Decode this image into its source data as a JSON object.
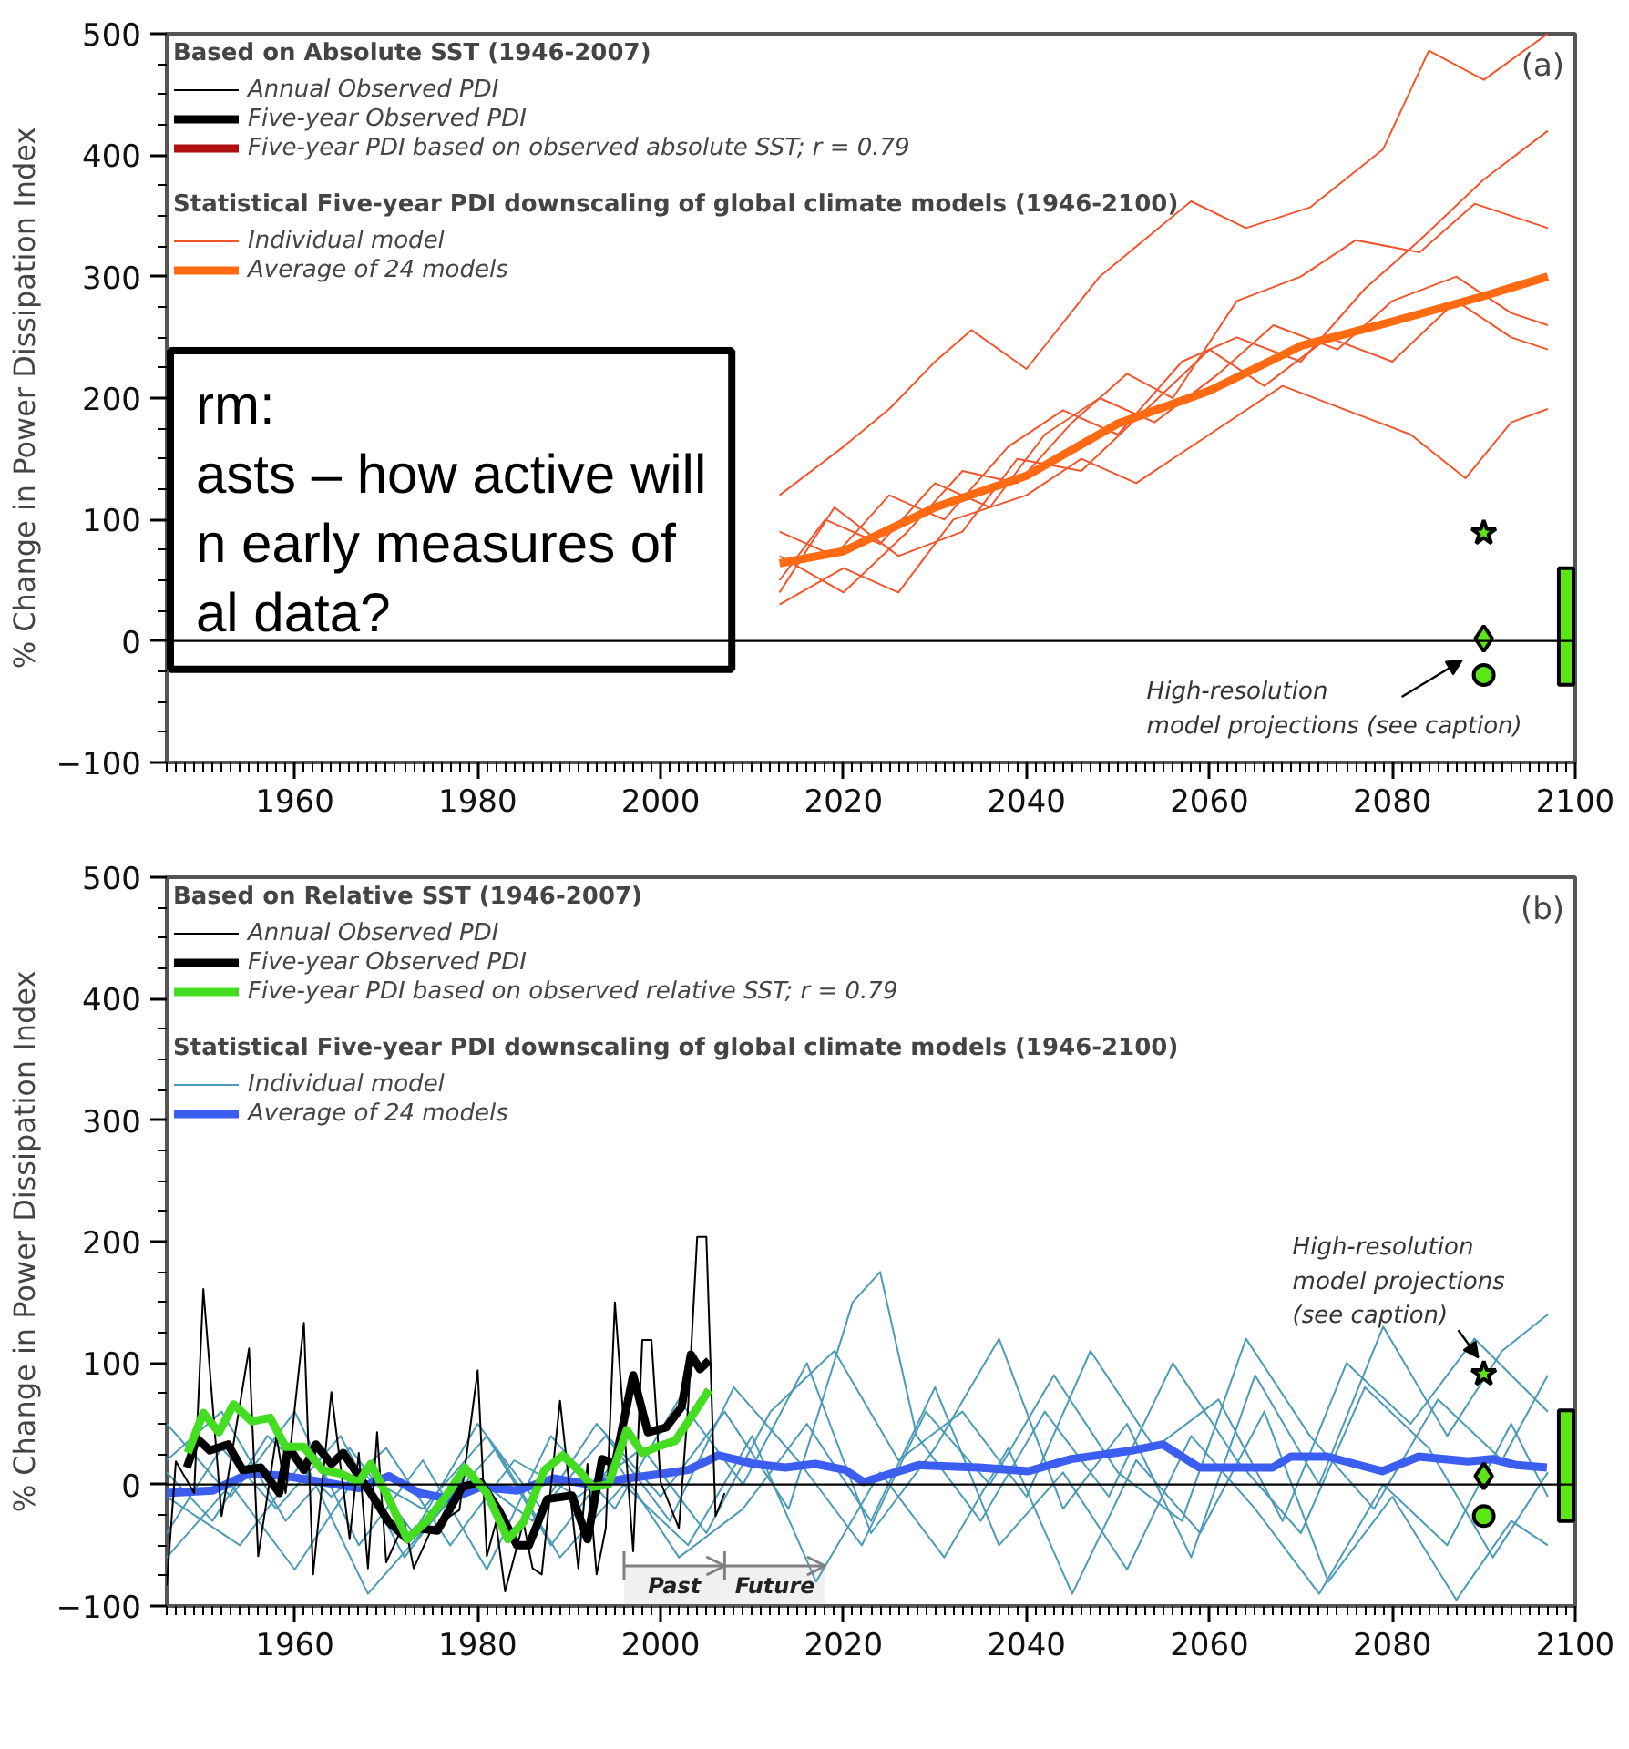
{
  "chart_data": [
    {
      "type": "line",
      "title": "(a)",
      "ylabel": "% Change in Power Dissipation Index",
      "legend_title": "Based on Absolute SST (1946-2007)",
      "subtitle": "Statistical Five-year PDI downscaling of global climate models (1946-2100)",
      "xlim": [
        1946,
        2100
      ],
      "xticks": [
        1960,
        1980,
        2000,
        2020,
        2040,
        2060,
        2080,
        2100
      ],
      "ylim": [
        -100,
        500
      ],
      "yticks": [
        -100,
        0,
        100,
        200,
        300,
        400,
        500
      ],
      "grid": false,
      "legend": "top left",
      "ref_lines": [
        {
          "axis": "y",
          "value": 0,
          "color": "#000000"
        }
      ],
      "annotations": [
        {
          "text": "High-resolution\nmodel projections (see caption)",
          "x": 2090,
          "y": 2
        },
        "rm:\nasts – how active will\nn early measures of\nal data?"
      ],
      "series": [
        {
          "name": "Individual model",
          "color": "#f2552c",
          "x": [
            2013,
            2020,
            2025,
            2030,
            2034,
            2040,
            2048,
            2058,
            2064,
            2071,
            2079,
            2084,
            2090,
            2097
          ],
          "values": [
            120,
            160,
            191,
            230,
            256,
            224,
            300,
            362,
            340,
            357,
            405,
            486,
            462,
            500
          ]
        },
        {
          "color": "#f2552c",
          "x": [
            2013,
            2020,
            2026,
            2032,
            2040,
            2046,
            2052,
            2060,
            2068,
            2075,
            2082,
            2088,
            2093,
            2097
          ],
          "values": [
            30,
            60,
            40,
            100,
            120,
            150,
            130,
            170,
            210,
            190,
            170,
            134,
            180,
            191
          ]
        },
        {
          "color": "#f2552c",
          "x": [
            2013,
            2019,
            2025,
            2031,
            2038,
            2044,
            2050,
            2057,
            2063,
            2070,
            2077,
            2083,
            2090,
            2097
          ],
          "values": [
            90,
            70,
            120,
            100,
            160,
            190,
            170,
            230,
            250,
            230,
            290,
            330,
            380,
            420
          ]
        },
        {
          "color": "#f2552c",
          "x": [
            2013,
            2018,
            2024,
            2030,
            2036,
            2042,
            2048,
            2054,
            2061,
            2067,
            2074,
            2080,
            2087,
            2093,
            2097
          ],
          "values": [
            50,
            100,
            80,
            130,
            110,
            170,
            200,
            180,
            220,
            260,
            240,
            280,
            300,
            270,
            260
          ]
        },
        {
          "color": "#f2552c",
          "x": [
            2013,
            2020,
            2027,
            2033,
            2039,
            2045,
            2051,
            2056,
            2063,
            2070,
            2076,
            2083,
            2089,
            2097
          ],
          "values": [
            70,
            40,
            90,
            140,
            130,
            180,
            220,
            200,
            280,
            300,
            330,
            320,
            360,
            340
          ]
        },
        {
          "color": "#f2552c",
          "x": [
            2013,
            2019,
            2026,
            2033,
            2039,
            2046,
            2053,
            2060,
            2066,
            2073,
            2080,
            2087,
            2093,
            2097
          ],
          "values": [
            40,
            110,
            70,
            90,
            150,
            140,
            190,
            240,
            210,
            250,
            230,
            280,
            250,
            240
          ]
        },
        {
          "name": "Average of 24 models",
          "color": "#ff6a13",
          "x": [
            2013,
            2020,
            2030,
            2040,
            2050,
            2060,
            2070,
            2080,
            2090,
            2097
          ],
          "values": [
            64,
            74,
            110,
            136,
            179,
            206,
            243,
            263,
            284,
            300
          ]
        },
        {
          "name": "Annual Observed PDI",
          "color": "#000000"
        },
        {
          "name": "Five-year Observed PDI",
          "color": "#000000"
        },
        {
          "name": "Five-year PDI based on observed absolute SST; r = 0.79",
          "color": "#b00f0f"
        },
        {
          "type": "scatter",
          "marker": "star",
          "color": "#5ce614",
          "x": [
            2090
          ],
          "values": [
            89
          ]
        },
        {
          "type": "scatter",
          "marker": "diamond",
          "color": "#5ce614",
          "x": [
            2090
          ],
          "values": [
            2
          ]
        },
        {
          "type": "scatter",
          "marker": "circle",
          "color": "#5ce614",
          "x": [
            2090
          ],
          "values": [
            -28
          ]
        },
        {
          "type": "bar",
          "color": "#5ce614",
          "x": [
            2099
          ],
          "base": [
            -36
          ],
          "values": [
            96
          ]
        }
      ]
    },
    {
      "type": "line",
      "title": "(b)",
      "ylabel": "% Change in Power Dissipation Index",
      "legend_title": "Based on Relative SST (1946-2007)",
      "subtitle": "Statistical Five-year PDI downscaling of global climate models (1946-2100)",
      "xlim": [
        1946,
        2100
      ],
      "xticks": [
        1960,
        1980,
        2000,
        2020,
        2040,
        2060,
        2080,
        2100
      ],
      "ylim": [
        -100,
        500
      ],
      "yticks": [
        -100,
        0,
        100,
        200,
        300,
        400,
        500
      ],
      "grid": false,
      "legend": "top left",
      "ref_lines": [
        {
          "axis": "y",
          "value": 0,
          "color": "#000000"
        }
      ],
      "bands": [
        {
          "axis": "x",
          "from": 1996,
          "to": 2007,
          "label": "Past",
          "color": "#808080"
        },
        {
          "axis": "x",
          "from": 2007,
          "to": 2018,
          "label": "Future",
          "color": "#808080"
        }
      ],
      "annotations": [
        {
          "text": "High-resolution\nmodel projections\n(see caption)",
          "x": 2090,
          "y": 91
        }
      ],
      "series": [
        {
          "name": "Individual model",
          "color": "#4a9ab8",
          "x": [
            1946,
            1952,
            1958,
            1965,
            1972,
            1979,
            1986,
            1993,
            2000,
            2007,
            2014,
            2021,
            2024,
            2028,
            2035,
            2042,
            2049,
            2056,
            2063,
            2070,
            2077,
            2084,
            2091,
            2097
          ],
          "values": [
            -40,
            30,
            -20,
            40,
            -60,
            10,
            -30,
            50,
            -10,
            60,
            -20,
            150,
            175,
            40,
            -30,
            60,
            -10,
            100,
            20,
            -40,
            80,
            30,
            -60,
            10
          ]
        },
        {
          "color": "#4a9ab8",
          "x": [
            1946,
            1953,
            1960,
            1967,
            1974,
            1981,
            1988,
            1995,
            2002,
            2009,
            2016,
            2023,
            2030,
            2037,
            2044,
            2051,
            2058,
            2065,
            2072,
            2079,
            2086,
            2092,
            2097
          ],
          "values": [
            50,
            -10,
            60,
            -50,
            20,
            -70,
            40,
            -20,
            70,
            0,
            100,
            -40,
            30,
            120,
            -20,
            50,
            -60,
            90,
            0,
            130,
            40,
            110,
            140
          ]
        },
        {
          "color": "#4a9ab8",
          "x": [
            1946,
            1954,
            1961,
            1968,
            1975,
            1982,
            1989,
            1996,
            2003,
            2010,
            2017,
            2024,
            2031,
            2038,
            2045,
            2052,
            2059,
            2066,
            2073,
            2080,
            2087,
            2093,
            2097
          ],
          "values": [
            -10,
            -50,
            20,
            -90,
            -30,
            30,
            -60,
            0,
            -50,
            40,
            -80,
            10,
            -60,
            30,
            -90,
            20,
            -40,
            60,
            -80,
            -10,
            -95,
            -30,
            -50
          ]
        },
        {
          "color": "#4a9ab8",
          "x": [
            1946,
            1952,
            1959,
            1966,
            1973,
            1980,
            1987,
            1994,
            2001,
            2008,
            2015,
            2022,
            2029,
            2036,
            2043,
            2050,
            2057,
            2064,
            2071,
            2078,
            2085,
            2092,
            2097
          ],
          "values": [
            20,
            60,
            -30,
            30,
            -40,
            50,
            -20,
            40,
            -30,
            80,
            20,
            -50,
            60,
            0,
            90,
            10,
            -30,
            120,
            40,
            -20,
            70,
            20,
            90
          ]
        },
        {
          "color": "#4a9ab8",
          "x": [
            1946,
            1953,
            1960,
            1967,
            1974,
            1981,
            1988,
            1995,
            2002,
            2009,
            2016,
            2023,
            2030,
            2037,
            2044,
            2051,
            2058,
            2065,
            2072,
            2079,
            2086,
            2093,
            2097
          ],
          "values": [
            -60,
            0,
            -70,
            10,
            -20,
            40,
            -50,
            20,
            -60,
            -20,
            50,
            -30,
            80,
            -50,
            10,
            -70,
            40,
            -20,
            -90,
            0,
            -50,
            50,
            -10
          ]
        },
        {
          "color": "#4a9ab8",
          "x": [
            1946,
            1951,
            1957,
            1964,
            1970,
            1977,
            1984,
            1991,
            1998,
            2005,
            2012,
            2019,
            2026,
            2033,
            2040,
            2047,
            2054,
            2061,
            2068,
            2075,
            2082,
            2089,
            2097
          ],
          "values": [
            10,
            -30,
            40,
            -10,
            30,
            -50,
            20,
            -10,
            30,
            -40,
            60,
            110,
            20,
            60,
            -10,
            110,
            30,
            70,
            -30,
            100,
            50,
            120,
            60
          ]
        },
        {
          "name": "Average of 24 models",
          "color": "#3c5ef0",
          "x": [
            1946,
            1951,
            1955,
            1959,
            1963,
            1967,
            1970.3,
            1973.6,
            1977,
            1980.3,
            1984.3,
            1988.3,
            1992.3,
            1996.3,
            2000.3,
            2003,
            2006.3,
            2010.2,
            2013.6,
            2016.9,
            2020.2,
            2022.2,
            2028.2,
            2034.8,
            2040.2,
            2044.9,
            2051.5,
            2054.9,
            2058.9,
            2066.9,
            2068.9,
            2072.9,
            2078.9,
            2082.9,
            2088.3,
            2090.9,
            2093.6,
            2096.9
          ],
          "values": [
            -7,
            -5,
            9,
            7,
            2,
            -3,
            7,
            -7,
            -12,
            -2,
            -5,
            5,
            0,
            5,
            9,
            12,
            24,
            17,
            14,
            17,
            12,
            2,
            16,
            14,
            11,
            21,
            28,
            33,
            14,
            14,
            23,
            23,
            11,
            23,
            19,
            21,
            16,
            14
          ]
        },
        {
          "name": "Annual Observed PDI",
          "color": "#000000",
          "x": [
            1946,
            1947,
            1949,
            1950,
            1952,
            1955,
            1956,
            1958,
            1959,
            1961,
            1962,
            1964,
            1966,
            1967,
            1968,
            1969,
            1970,
            1972,
            1973,
            1975,
            1978,
            1980,
            1981,
            1982,
            1983,
            1985,
            1986,
            1987,
            1989,
            1991,
            1992,
            1993,
            1994,
            1995,
            1997,
            1998,
            1999,
            2000,
            2002,
            2003,
            2004,
            2005,
            2006,
            2007
          ],
          "values": [
            -83,
            19,
            -7,
            161,
            -26,
            112,
            -59,
            40,
            -7,
            133,
            -74,
            76,
            -45,
            26,
            -69,
            43,
            -64,
            -31,
            -69,
            -36,
            -21,
            94,
            -59,
            -31,
            -88,
            -31,
            -69,
            -74,
            69,
            -69,
            17,
            -74,
            -36,
            150,
            -55,
            119,
            119,
            2,
            -36,
            64,
            204,
            204,
            -26,
            -7
          ]
        },
        {
          "name": "Five-year Observed PDI",
          "color": "#000000",
          "x": [
            1948.2,
            1949.3,
            1950.7,
            1952.7,
            1954.3,
            1956.3,
            1958.3,
            1959.3,
            1961,
            1962.3,
            1964,
            1965.3,
            1967,
            1968.3,
            1970.3,
            1972.3,
            1973.6,
            1975.6,
            1978.3,
            1980.3,
            1982.3,
            1984.3,
            1985.6,
            1987.6,
            1990.3,
            1992,
            1993.6,
            1995,
            1997,
            1998.6,
            2000.6,
            2002.3,
            2003.3,
            2004.3,
            2005.3
          ],
          "values": [
            14,
            38,
            28,
            33,
            12,
            14,
            -7,
            31,
            12,
            33,
            17,
            26,
            7,
            -7,
            -31,
            -45,
            -36,
            -38,
            -2,
            2,
            -21,
            -50,
            -50,
            -12,
            -9,
            -45,
            21,
            17,
            90,
            43,
            47,
            64,
            107,
            95,
            102
          ]
        },
        {
          "name": "Five-year PDI based on observed relative SST; r = 0.79",
          "color": "#44dd22",
          "x": [
            1948.3,
            1950,
            1951.7,
            1953.3,
            1955.3,
            1957.3,
            1959,
            1961,
            1963,
            1965,
            1967,
            1968.3,
            1970.3,
            1972.3,
            1974.3,
            1976.3,
            1978.6,
            1981,
            1983.3,
            1985,
            1987.3,
            1989.3,
            1991,
            1992.6,
            1994.3,
            1996.3,
            1998,
            1999.6,
            2001.6,
            2003.3,
            2005.3
          ],
          "values": [
            26,
            59,
            43,
            66,
            52,
            55,
            31,
            31,
            12,
            9,
            2,
            17,
            -12,
            -45,
            -31,
            -12,
            14,
            -7,
            -45,
            -31,
            12,
            24,
            12,
            -2,
            0,
            45,
            26,
            31,
            36,
            55,
            78
          ]
        },
        {
          "type": "scatter",
          "marker": "star",
          "color": "#5ce614",
          "x": [
            2090
          ],
          "values": [
            91
          ]
        },
        {
          "type": "scatter",
          "marker": "diamond",
          "color": "#5ce614",
          "x": [
            2090
          ],
          "values": [
            7
          ]
        },
        {
          "type": "scatter",
          "marker": "circle",
          "color": "#5ce614",
          "x": [
            2090
          ],
          "values": [
            -26
          ]
        },
        {
          "type": "bar",
          "color": "#5ce614",
          "x": [
            2099
          ],
          "base": [
            -30
          ],
          "values": [
            91
          ]
        }
      ]
    }
  ]
}
